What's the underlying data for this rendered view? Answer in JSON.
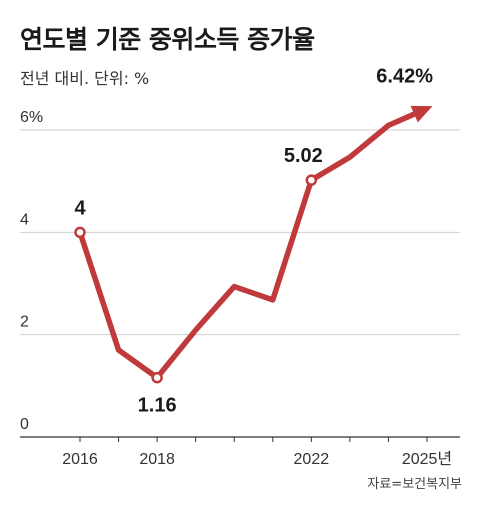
{
  "title": "연도별 기준 중위소득 증가율",
  "subtitle": "전년 대비. 단위: %",
  "source": "자료=보건복지부",
  "chart_data": {
    "type": "line",
    "title": "연도별 기준 중위소득 증가율",
    "subtitle": "전년 대비. 단위: %",
    "ylabel": "%",
    "ylim": [
      0,
      6
    ],
    "y_ticks": [
      {
        "value": 0,
        "label": "0"
      },
      {
        "value": 2,
        "label": "2"
      },
      {
        "value": 4,
        "label": "4"
      },
      {
        "value": 6,
        "label": "6%"
      }
    ],
    "x_ticks": [
      {
        "value": 2016,
        "label": "2016"
      },
      {
        "value": 2018,
        "label": "2018"
      },
      {
        "value": 2022,
        "label": "2022"
      },
      {
        "value": 2025,
        "label": "2025년"
      }
    ],
    "x": [
      2016,
      2017,
      2018,
      2019,
      2020,
      2021,
      2022,
      2023,
      2024,
      2025
    ],
    "series": [
      {
        "values": [
          4.0,
          1.7,
          1.16,
          2.09,
          2.94,
          2.68,
          5.02,
          5.47,
          6.09,
          6.42
        ],
        "color": "#c0393b"
      }
    ],
    "data_labels": [
      {
        "x": 2016,
        "label": "4",
        "marker": true
      },
      {
        "x": 2018,
        "label": "1.16",
        "marker": true
      },
      {
        "x": 2022,
        "label": "5.02",
        "marker": true
      },
      {
        "x": 2025,
        "label": "6.42%",
        "marker": false
      }
    ],
    "grid": true,
    "legend": "none"
  }
}
